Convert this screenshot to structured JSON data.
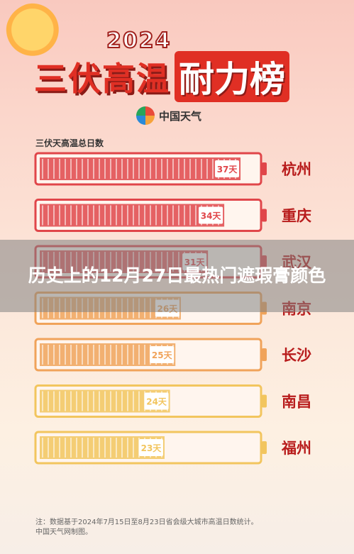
{
  "poster": {
    "year": "2024",
    "title_part1": "三伏高温",
    "title_part2": "耐力榜",
    "logo_text": "中国天气",
    "chart_title": "三伏天高温总日数",
    "footer_line1": "注：数据基于2024年7月15日至8月23日省会级大城市高温日数统计。",
    "footer_line2": "中国天气网制图。"
  },
  "overlay": {
    "headline": "历史上的12月27日最热门遮瑕膏颜色"
  },
  "colors": {
    "red_battery": "#e0464a",
    "orange_battery": "#f0a35a",
    "yellow_battery": "#f2c55e"
  },
  "chart_data": {
    "type": "bar",
    "title": "三伏天高温总日数",
    "categories": [
      "杭州",
      "重庆",
      "武汉",
      "南京",
      "长沙",
      "南昌",
      "福州"
    ],
    "values": [
      37,
      34,
      31,
      26,
      25,
      24,
      23
    ],
    "value_labels": [
      "37天",
      "34天",
      "31天",
      "26天",
      "25天",
      "24天",
      "23天"
    ],
    "max": 40
  }
}
